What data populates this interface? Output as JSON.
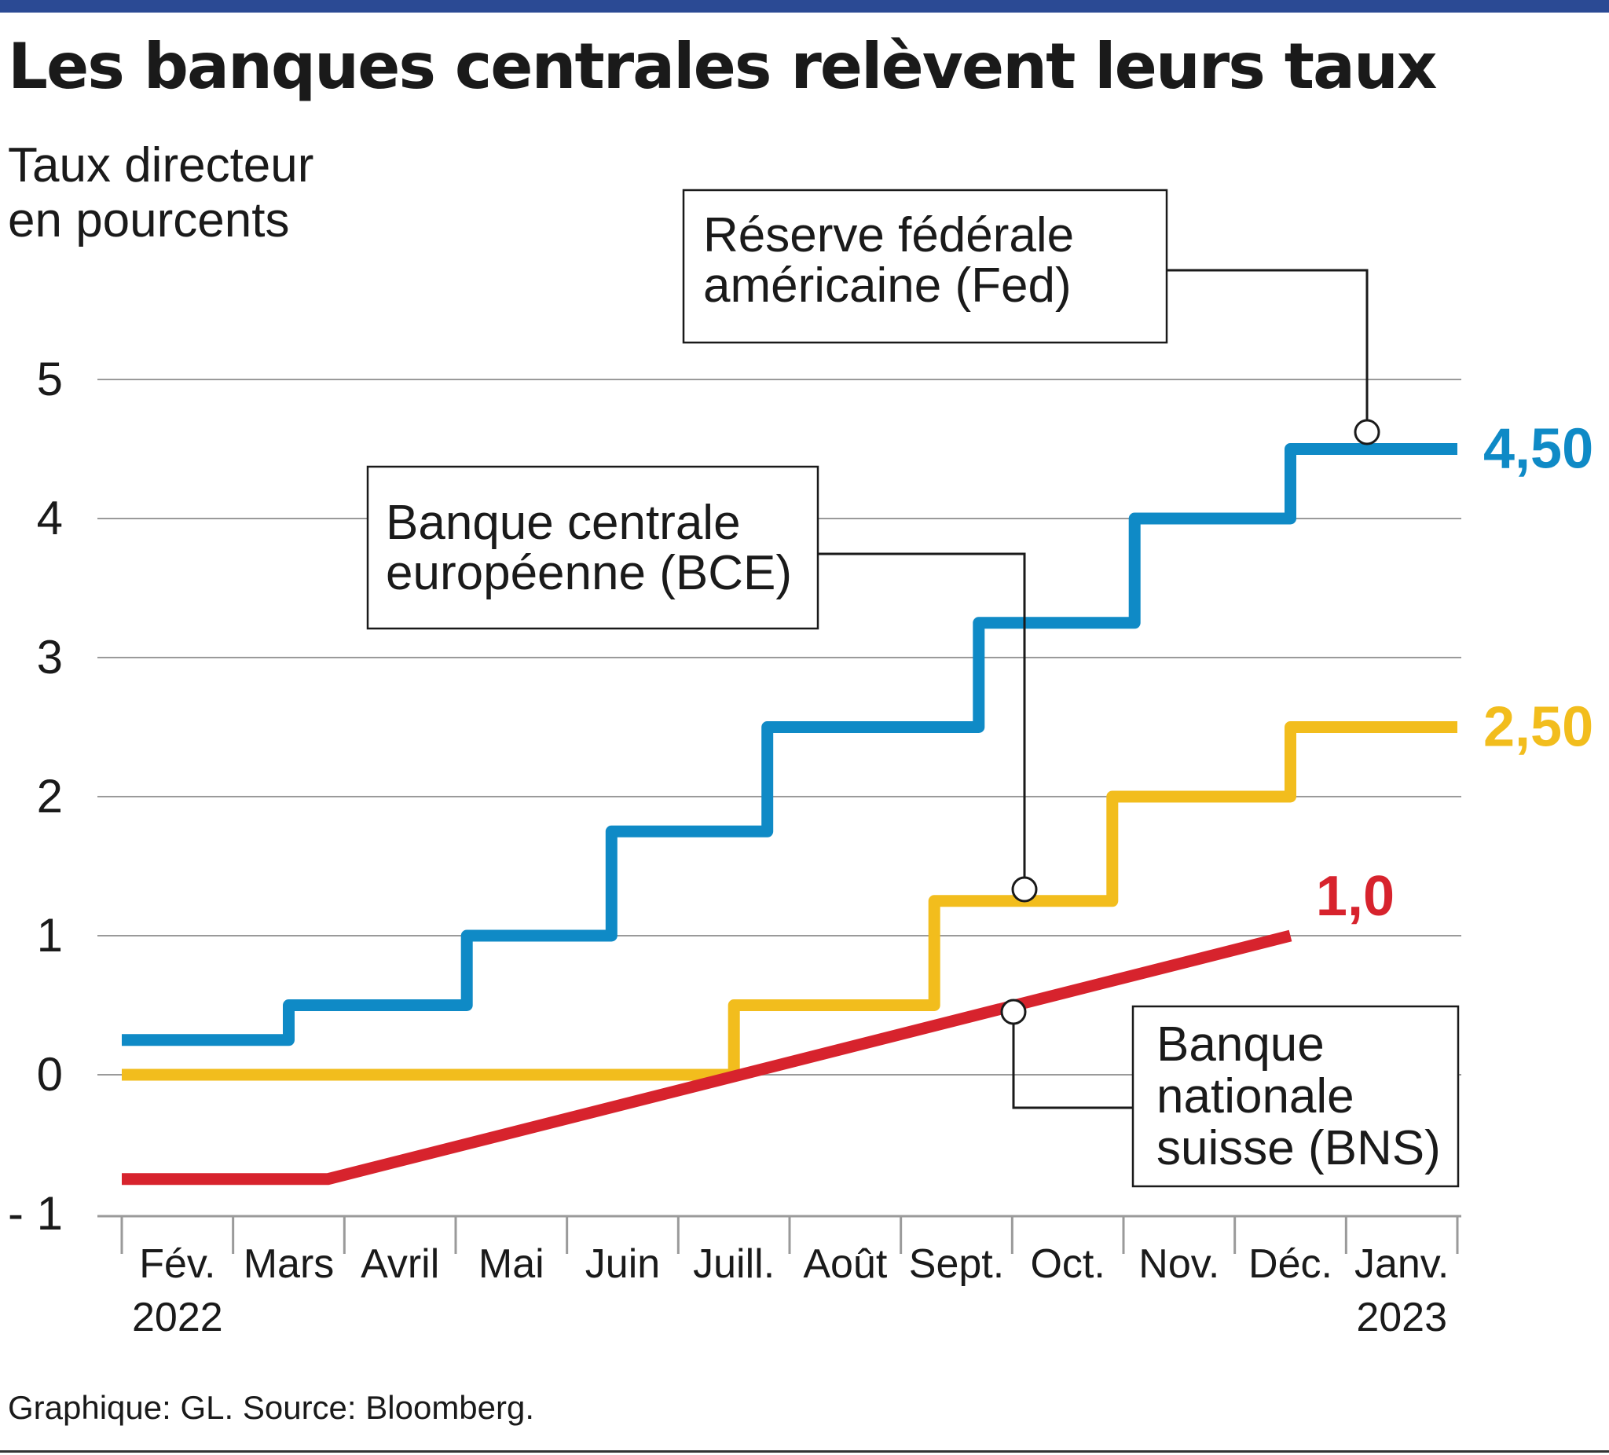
{
  "title": "Les banques centrales relèvent leurs taux",
  "ylabel": "Taux directeur\nen pourcents",
  "source": "Graphique: GL. Source: Bloomberg.",
  "colors": {
    "fed": "#0f8ac6",
    "bce": "#f2bd1d",
    "bns": "#d7232d",
    "header": "#2b4a94"
  },
  "chart_data": {
    "type": "line",
    "step": true,
    "x_categories": [
      [
        "Fév.",
        "2022"
      ],
      [
        "Mars"
      ],
      [
        "Avril"
      ],
      [
        "Mai"
      ],
      [
        "Juin"
      ],
      [
        "Juill."
      ],
      [
        "Août"
      ],
      [
        "Sept."
      ],
      [
        "Oct."
      ],
      [
        "Nov."
      ],
      [
        "Déc."
      ],
      [
        "Janv.",
        "2023"
      ]
    ],
    "ylim": [
      -1,
      5.6
    ],
    "yticks": [
      "-1",
      "0",
      "1",
      "2",
      "3",
      "4",
      "5"
    ],
    "grid": true,
    "series": [
      {
        "key": "fed",
        "name": "Réserve fédérale américaine (Fed)",
        "end_label": "4,50",
        "shape": "step",
        "points": [
          [
            0,
            0.25
          ],
          [
            1.5,
            0.25
          ],
          [
            1.5,
            0.5
          ],
          [
            3.1,
            0.5
          ],
          [
            3.1,
            1.0
          ],
          [
            4.4,
            1.0
          ],
          [
            4.4,
            1.75
          ],
          [
            5.8,
            1.75
          ],
          [
            5.8,
            2.5
          ],
          [
            7.7,
            2.5
          ],
          [
            7.7,
            3.25
          ],
          [
            9.1,
            3.25
          ],
          [
            9.1,
            4.0
          ],
          [
            10.5,
            4.0
          ],
          [
            10.5,
            4.5
          ],
          [
            12.0,
            4.5
          ]
        ]
      },
      {
        "key": "bce",
        "name": "Banque centrale européenne (BCE)",
        "end_label": "2,50",
        "shape": "step",
        "points": [
          [
            0,
            0
          ],
          [
            5.5,
            0
          ],
          [
            5.5,
            0.5
          ],
          [
            7.3,
            0.5
          ],
          [
            7.3,
            1.25
          ],
          [
            8.9,
            1.25
          ],
          [
            8.9,
            2.0
          ],
          [
            10.5,
            2.0
          ],
          [
            10.5,
            2.5
          ],
          [
            12.0,
            2.5
          ]
        ]
      },
      {
        "key": "bns",
        "name": "Banque nationale suisse (BNS)",
        "end_label": "1,0",
        "shape": "line",
        "points": [
          [
            0,
            -0.75
          ],
          [
            1.85,
            -0.75
          ],
          [
            10.5,
            1.0
          ]
        ]
      }
    ],
    "annotations": [
      {
        "series": "fed",
        "lines": [
          "Réserve fédérale",
          "américaine (Fed)"
        ]
      },
      {
        "series": "bce",
        "lines": [
          "Banque centrale",
          "européenne (BCE)"
        ]
      },
      {
        "series": "bns",
        "lines": [
          "Banque",
          "nationale",
          "suisse (BNS)"
        ]
      }
    ]
  }
}
